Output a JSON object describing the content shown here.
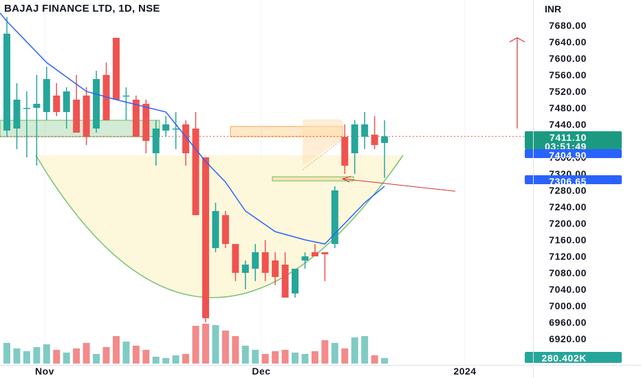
{
  "header": {
    "title": "BAJAJ FINANCE LTD, 1D, NSE",
    "currency": "INR"
  },
  "price_axis": {
    "ticks": [
      "7680.00",
      "7640.00",
      "7600.00",
      "7560.00",
      "7520.00",
      "7480.00",
      "7440.00",
      "7400.00",
      "7360.00",
      "7320.00",
      "7280.00",
      "7240.00",
      "7200.00",
      "7160.00",
      "7120.00",
      "7080.00",
      "7040.00",
      "7000.00",
      "6960.00",
      "6920.00"
    ]
  },
  "time_axis": {
    "labels": [
      "Nov",
      "Dec",
      "2024"
    ]
  },
  "badges": {
    "last_price": "7411.10",
    "countdown": "03:51:49",
    "level_1": "7404.90",
    "level_2": "7306.65",
    "volume": "280.402K"
  },
  "colors": {
    "up": "#26a69a",
    "down": "#ef5350",
    "ma": "#2962ff",
    "cup": "#7cc47c",
    "annotation": "#d32f2f"
  },
  "chart_data": {
    "type": "candlestick",
    "title": "BAJAJ FINANCE LTD, 1D, NSE",
    "y_unit": "INR",
    "ylim": [
      6880,
      7720
    ],
    "candles": [
      {
        "o": 7425,
        "h": 7700,
        "l": 7410,
        "c": 7660,
        "v": 30
      },
      {
        "o": 7430,
        "h": 7540,
        "l": 7380,
        "c": 7500,
        "v": 22
      },
      {
        "o": 7480,
        "h": 7520,
        "l": 7360,
        "c": 7480,
        "v": 18
      },
      {
        "o": 7480,
        "h": 7560,
        "l": 7340,
        "c": 7490,
        "v": 24
      },
      {
        "o": 7470,
        "h": 7580,
        "l": 7450,
        "c": 7550,
        "v": 28
      },
      {
        "o": 7510,
        "h": 7540,
        "l": 7460,
        "c": 7470,
        "v": 20
      },
      {
        "o": 7470,
        "h": 7530,
        "l": 7430,
        "c": 7520,
        "v": 16
      },
      {
        "o": 7500,
        "h": 7560,
        "l": 7420,
        "c": 7420,
        "v": 22
      },
      {
        "o": 7510,
        "h": 7530,
        "l": 7390,
        "c": 7410,
        "v": 30
      },
      {
        "o": 7430,
        "h": 7570,
        "l": 7420,
        "c": 7550,
        "v": 14
      },
      {
        "o": 7560,
        "h": 7590,
        "l": 7450,
        "c": 7450,
        "v": 24
      },
      {
        "o": 7650,
        "h": 7650,
        "l": 7500,
        "c": 7500,
        "v": 40
      },
      {
        "o": 7510,
        "h": 7530,
        "l": 7450,
        "c": 7510,
        "v": 32
      },
      {
        "o": 7500,
        "h": 7510,
        "l": 7410,
        "c": 7410,
        "v": 26
      },
      {
        "o": 7490,
        "h": 7500,
        "l": 7370,
        "c": 7400,
        "v": 20
      },
      {
        "o": 7370,
        "h": 7450,
        "l": 7340,
        "c": 7430,
        "v": 10
      },
      {
        "o": 7425,
        "h": 7460,
        "l": 7410,
        "c": 7440,
        "v": 8
      },
      {
        "o": 7430,
        "h": 7470,
        "l": 7380,
        "c": 7430,
        "v": 12
      },
      {
        "o": 7440,
        "h": 7450,
        "l": 7340,
        "c": 7370,
        "v": 14
      },
      {
        "o": 7430,
        "h": 7470,
        "l": 7220,
        "c": 7220,
        "v": 55
      },
      {
        "o": 7360,
        "h": 7360,
        "l": 6960,
        "c": 6970,
        "v": 58
      },
      {
        "o": 7140,
        "h": 7250,
        "l": 7130,
        "c": 7230,
        "v": 56
      },
      {
        "o": 7220,
        "h": 7230,
        "l": 7140,
        "c": 7150,
        "v": 48
      },
      {
        "o": 7150,
        "h": 7150,
        "l": 7060,
        "c": 7080,
        "v": 40
      },
      {
        "o": 7080,
        "h": 7110,
        "l": 7040,
        "c": 7100,
        "v": 26
      },
      {
        "o": 7090,
        "h": 7150,
        "l": 7060,
        "c": 7130,
        "v": 20
      },
      {
        "o": 7130,
        "h": 7160,
        "l": 7060,
        "c": 7080,
        "v": 14
      },
      {
        "o": 7110,
        "h": 7130,
        "l": 7050,
        "c": 7070,
        "v": 18
      },
      {
        "o": 7100,
        "h": 7130,
        "l": 7020,
        "c": 7020,
        "v": 20
      },
      {
        "o": 7030,
        "h": 7090,
        "l": 7020,
        "c": 7090,
        "v": 16
      },
      {
        "o": 7110,
        "h": 7130,
        "l": 7090,
        "c": 7120,
        "v": 14
      },
      {
        "o": 7130,
        "h": 7150,
        "l": 7120,
        "c": 7120,
        "v": 18
      },
      {
        "o": 7130,
        "h": 7130,
        "l": 7060,
        "c": 7125,
        "v": 34
      },
      {
        "o": 7150,
        "h": 7290,
        "l": 7140,
        "c": 7280,
        "v": 30
      },
      {
        "o": 7410,
        "h": 7440,
        "l": 7320,
        "c": 7340,
        "v": 22
      },
      {
        "o": 7370,
        "h": 7450,
        "l": 7320,
        "c": 7440,
        "v": 38
      },
      {
        "o": 7410,
        "h": 7470,
        "l": 7380,
        "c": 7440,
        "v": 40
      },
      {
        "o": 7415,
        "h": 7460,
        "l": 7380,
        "c": 7390,
        "v": 12
      },
      {
        "o": 7395,
        "h": 7450,
        "l": 7310,
        "c": 7411,
        "v": 8
      }
    ],
    "moving_average": [
      {
        "i": 0,
        "y": 7690
      },
      {
        "i": 4,
        "y": 7590
      },
      {
        "i": 8,
        "y": 7520
      },
      {
        "i": 11,
        "y": 7500
      },
      {
        "i": 16,
        "y": 7470
      },
      {
        "i": 20,
        "y": 7350
      },
      {
        "i": 22,
        "y": 7300
      },
      {
        "i": 24,
        "y": 7230
      },
      {
        "i": 27,
        "y": 7180
      },
      {
        "i": 30,
        "y": 7160
      },
      {
        "i": 32,
        "y": 7150
      },
      {
        "i": 34,
        "y": 7200
      },
      {
        "i": 36,
        "y": 7250
      },
      {
        "i": 38,
        "y": 7290
      }
    ],
    "levels": [
      {
        "price": 7411.1,
        "style": "dotted",
        "color": "#ef5350"
      }
    ]
  }
}
